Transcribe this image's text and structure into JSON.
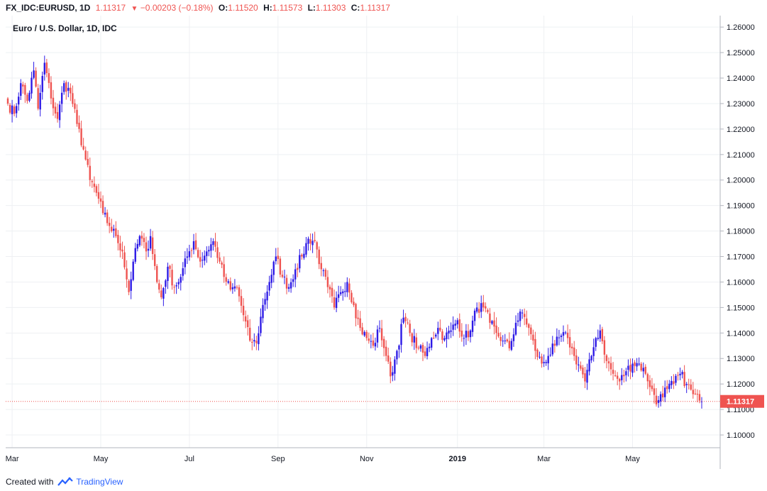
{
  "header": {
    "symbol": "FX_IDC:EURUSD, 1D",
    "last": "1.11317",
    "change": "−0.00203 (−0.18%)",
    "o_label": "O:",
    "o_value": "1.11520",
    "h_label": "H:",
    "h_value": "1.11573",
    "l_label": "L:",
    "l_value": "1.11303",
    "c_label": "C:",
    "c_value": "1.11317"
  },
  "footer": {
    "created_with": "Created with",
    "brand": "TradingView"
  },
  "colors": {
    "up": "#2d1ae6",
    "down": "#ef5350",
    "grid": "#eef0f3",
    "axis_text": "#131722",
    "price_tag": "#ef5350"
  },
  "chart_data": {
    "type": "candlestick",
    "title": "Euro / U.S. Dollar, 1D, IDC",
    "ylim": [
      1.095,
      1.2645
    ],
    "y_ticks": [
      "1.26000",
      "1.25000",
      "1.24000",
      "1.23000",
      "1.22000",
      "1.21000",
      "1.20000",
      "1.19000",
      "1.18000",
      "1.17000",
      "1.16000",
      "1.15000",
      "1.14000",
      "1.13000",
      "1.12000",
      "1.11000",
      "1.10000"
    ],
    "x_ticks": [
      "Mar",
      "May",
      "Jul",
      "Sep",
      "Nov",
      "2019",
      "Mar",
      "May"
    ],
    "x_tick_index": [
      2,
      43,
      84,
      125,
      166,
      208,
      248,
      289
    ],
    "last_price": 1.11317,
    "last_price_label": "1.11317",
    "close_anchors": [
      [
        0,
        1.23
      ],
      [
        3,
        1.226
      ],
      [
        6,
        1.238
      ],
      [
        9,
        1.231
      ],
      [
        12,
        1.243
      ],
      [
        14,
        1.228
      ],
      [
        17,
        1.246
      ],
      [
        20,
        1.232
      ],
      [
        23,
        1.224
      ],
      [
        26,
        1.238
      ],
      [
        29,
        1.234
      ],
      [
        32,
        1.222
      ],
      [
        35,
        1.212
      ],
      [
        38,
        1.2
      ],
      [
        41,
        1.195
      ],
      [
        44,
        1.187
      ],
      [
        47,
        1.182
      ],
      [
        50,
        1.178
      ],
      [
        53,
        1.172
      ],
      [
        56,
        1.156
      ],
      [
        58,
        1.168
      ],
      [
        61,
        1.178
      ],
      [
        64,
        1.172
      ],
      [
        66,
        1.178
      ],
      [
        69,
        1.16
      ],
      [
        71,
        1.154
      ],
      [
        74,
        1.166
      ],
      [
        77,
        1.158
      ],
      [
        80,
        1.162
      ],
      [
        83,
        1.17
      ],
      [
        86,
        1.176
      ],
      [
        89,
        1.168
      ],
      [
        92,
        1.172
      ],
      [
        95,
        1.176
      ],
      [
        98,
        1.168
      ],
      [
        100,
        1.162
      ],
      [
        103,
        1.157
      ],
      [
        106,
        1.158
      ],
      [
        109,
        1.147
      ],
      [
        112,
        1.137
      ],
      [
        115,
        1.136
      ],
      [
        118,
        1.151
      ],
      [
        121,
        1.16
      ],
      [
        124,
        1.17
      ],
      [
        127,
        1.162
      ],
      [
        130,
        1.158
      ],
      [
        133,
        1.165
      ],
      [
        136,
        1.17
      ],
      [
        139,
        1.177
      ],
      [
        142,
        1.176
      ],
      [
        145,
        1.165
      ],
      [
        148,
        1.158
      ],
      [
        151,
        1.15
      ],
      [
        154,
        1.156
      ],
      [
        157,
        1.16
      ],
      [
        160,
        1.151
      ],
      [
        163,
        1.142
      ],
      [
        166,
        1.138
      ],
      [
        169,
        1.135
      ],
      [
        172,
        1.142
      ],
      [
        175,
        1.131
      ],
      [
        177,
        1.123
      ],
      [
        180,
        1.133
      ],
      [
        183,
        1.146
      ],
      [
        186,
        1.14
      ],
      [
        190,
        1.134
      ],
      [
        193,
        1.131
      ],
      [
        196,
        1.138
      ],
      [
        199,
        1.142
      ],
      [
        202,
        1.138
      ],
      [
        205,
        1.141
      ],
      [
        208,
        1.145
      ],
      [
        211,
        1.138
      ],
      [
        214,
        1.141
      ],
      [
        217,
        1.15
      ],
      [
        220,
        1.15
      ],
      [
        223,
        1.144
      ],
      [
        226,
        1.14
      ],
      [
        229,
        1.137
      ],
      [
        232,
        1.134
      ],
      [
        235,
        1.144
      ],
      [
        238,
        1.148
      ],
      [
        241,
        1.142
      ],
      [
        244,
        1.133
      ],
      [
        247,
        1.128
      ],
      [
        250,
        1.131
      ],
      [
        253,
        1.135
      ],
      [
        256,
        1.139
      ],
      [
        259,
        1.138
      ],
      [
        262,
        1.131
      ],
      [
        265,
        1.126
      ],
      [
        267,
        1.121
      ],
      [
        270,
        1.131
      ],
      [
        272,
        1.138
      ],
      [
        274,
        1.141
      ],
      [
        277,
        1.129
      ],
      [
        280,
        1.124
      ],
      [
        283,
        1.121
      ],
      [
        286,
        1.125
      ],
      [
        289,
        1.128
      ],
      [
        292,
        1.128
      ],
      [
        295,
        1.124
      ],
      [
        298,
        1.118
      ],
      [
        300,
        1.112
      ],
      [
        302,
        1.116
      ],
      [
        305,
        1.118
      ],
      [
        308,
        1.12
      ],
      [
        311,
        1.124
      ],
      [
        314,
        1.12
      ],
      [
        317,
        1.116
      ],
      [
        320,
        1.1135
      ],
      [
        321,
        1.11317
      ]
    ]
  }
}
